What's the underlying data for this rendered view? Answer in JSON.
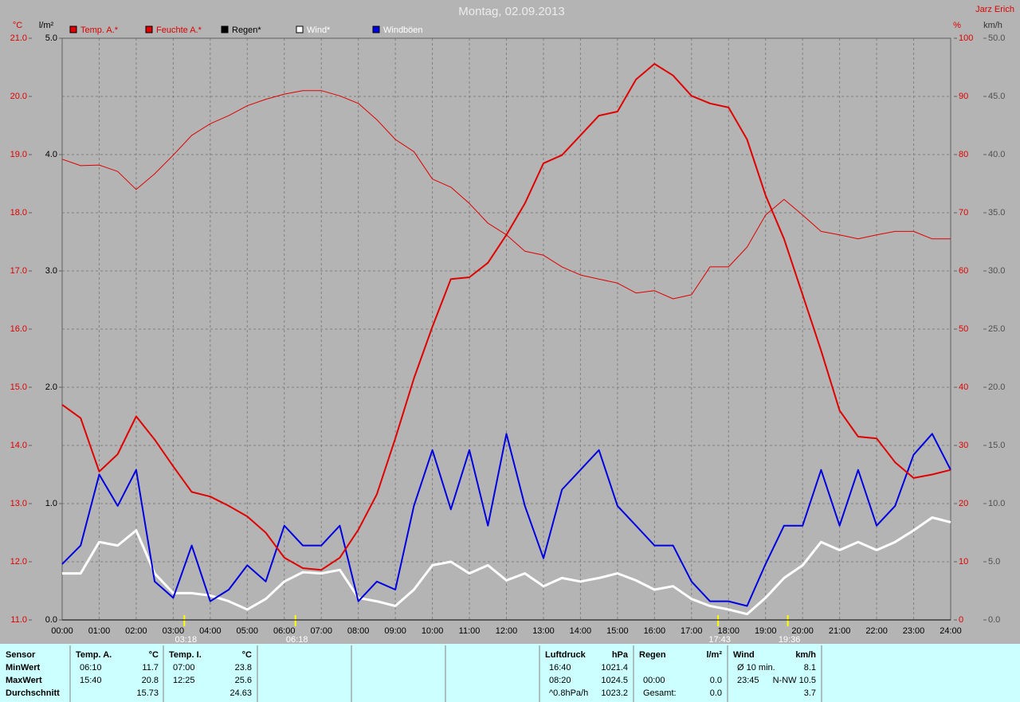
{
  "chart_data": {
    "type": "line",
    "title": "Montag, 02.09.2013",
    "author": "Jarz Erich",
    "axis_labels": {
      "y": "°C",
      "y4": "l/m²",
      "y2": "%",
      "y3": "km/h"
    },
    "x": [
      0,
      0.5,
      1,
      1.5,
      2,
      2.5,
      3,
      3.5,
      4,
      4.5,
      5,
      5.5,
      6,
      6.5,
      7,
      7.5,
      8,
      8.5,
      9,
      9.5,
      10,
      10.5,
      11,
      11.5,
      12,
      12.5,
      13,
      13.5,
      14,
      14.5,
      15,
      15.5,
      16,
      16.5,
      17,
      17.5,
      18,
      18.5,
      19,
      19.5,
      20,
      20.5,
      21,
      21.5,
      22,
      22.5,
      23,
      23.5,
      24
    ],
    "xlim": [
      0,
      24
    ],
    "xticks": [
      {
        "value": 0,
        "label": "00:00"
      },
      {
        "value": 1,
        "label": "01:00"
      },
      {
        "value": 2,
        "label": "02:00"
      },
      {
        "value": 3,
        "label": "03:00"
      },
      {
        "value": 4,
        "label": "04:00"
      },
      {
        "value": 5,
        "label": "05:00"
      },
      {
        "value": 6,
        "label": "06:00"
      },
      {
        "value": 7,
        "label": "07:00"
      },
      {
        "value": 8,
        "label": "08:00"
      },
      {
        "value": 9,
        "label": "09:00"
      },
      {
        "value": 10,
        "label": "10:00"
      },
      {
        "value": 11,
        "label": "11:00"
      },
      {
        "value": 12,
        "label": "12:00"
      },
      {
        "value": 13,
        "label": "13:00"
      },
      {
        "value": 14,
        "label": "14:00"
      },
      {
        "value": 15,
        "label": "15:00"
      },
      {
        "value": 16,
        "label": "16:00"
      },
      {
        "value": 17,
        "label": "17:00"
      },
      {
        "value": 18,
        "label": "18:00"
      },
      {
        "value": 19,
        "label": "19:00"
      },
      {
        "value": 20,
        "label": "20:00"
      },
      {
        "value": 21,
        "label": "21:00"
      },
      {
        "value": 22,
        "label": "22:00"
      },
      {
        "value": 23,
        "label": "23:00"
      },
      {
        "value": 24,
        "label": "24:00"
      }
    ],
    "ylim": [
      11,
      21
    ],
    "yticks": [
      {
        "value": 11,
        "label": "11.0"
      },
      {
        "value": 12,
        "label": "12.0"
      },
      {
        "value": 13,
        "label": "13.0"
      },
      {
        "value": 14,
        "label": "14.0"
      },
      {
        "value": 15,
        "label": "15.0"
      },
      {
        "value": 16,
        "label": "16.0"
      },
      {
        "value": 17,
        "label": "17.0"
      },
      {
        "value": 18,
        "label": "18.0"
      },
      {
        "value": 19,
        "label": "19.0"
      },
      {
        "value": 20,
        "label": "20.0"
      },
      {
        "value": 21,
        "label": "21.0"
      }
    ],
    "y4lim": [
      0,
      5
    ],
    "y4ticks": [
      {
        "value": 0,
        "label": "0.0"
      },
      {
        "value": 1,
        "label": "1.0"
      },
      {
        "value": 2,
        "label": "2.0"
      },
      {
        "value": 3,
        "label": "3.0"
      },
      {
        "value": 4,
        "label": "4.0"
      },
      {
        "value": 5,
        "label": "5.0"
      }
    ],
    "y2lim": [
      0,
      100
    ],
    "y2ticks": [
      0,
      10,
      20,
      30,
      40,
      50,
      60,
      70,
      80,
      90,
      100
    ],
    "y3lim": [
      0,
      50
    ],
    "y3ticks": [
      {
        "value": 0,
        "label": "0.0"
      },
      {
        "value": 5,
        "label": "5.0"
      },
      {
        "value": 10,
        "label": "10.0"
      },
      {
        "value": 15,
        "label": "15.0"
      },
      {
        "value": 20,
        "label": "20.0"
      },
      {
        "value": 25,
        "label": "25.0"
      },
      {
        "value": 30,
        "label": "30.0"
      },
      {
        "value": 35,
        "label": "35.0"
      },
      {
        "value": 40,
        "label": "40.0"
      },
      {
        "value": 45,
        "label": "45.0"
      },
      {
        "value": 50,
        "label": "50.0"
      }
    ],
    "grid": true,
    "series": [
      {
        "name": "Temp. A.*",
        "color": "#e00000",
        "axis": "y",
        "width": 2,
        "values": [
          14.7,
          14.47,
          13.55,
          13.85,
          14.5,
          14.1,
          13.64,
          13.2,
          13.12,
          12.96,
          12.78,
          12.5,
          12.07,
          11.89,
          11.86,
          12.07,
          12.55,
          13.16,
          14.12,
          15.15,
          16.04,
          16.86,
          16.89,
          17.14,
          17.62,
          18.16,
          18.85,
          18.99,
          19.33,
          19.67,
          19.74,
          20.29,
          20.56,
          20.36,
          20.01,
          19.88,
          19.81,
          19.26,
          18.3,
          17.55,
          16.59,
          15.63,
          14.6,
          14.15,
          14.12,
          13.71,
          13.44,
          13.5,
          13.58
        ]
      },
      {
        "name": "Feuchte A.*",
        "color": "#e00000",
        "axis": "y2",
        "width": 1,
        "values": [
          79.2,
          78.1,
          78.2,
          77.1,
          74,
          76.7,
          79.9,
          83.3,
          85.3,
          86.7,
          88.4,
          89.5,
          90.4,
          91,
          91,
          90.1,
          88.8,
          86,
          82.6,
          80.5,
          75.8,
          74.4,
          71.6,
          68.2,
          66.2,
          63.4,
          62.7,
          60.7,
          59.3,
          58.6,
          57.9,
          56.2,
          56.6,
          55.2,
          55.9,
          60.7,
          60.7,
          64.1,
          69.6,
          72.3,
          69.6,
          66.8,
          66.2,
          65.5,
          66.2,
          66.8,
          66.8,
          65.5,
          65.5
        ]
      },
      {
        "name": "Regen*",
        "color": "#000000",
        "axis": "y4",
        "width": 1,
        "values": [
          0,
          0,
          0,
          0,
          0,
          0,
          0,
          0,
          0,
          0,
          0,
          0,
          0,
          0,
          0,
          0,
          0,
          0,
          0,
          0,
          0,
          0,
          0,
          0,
          0,
          0,
          0,
          0,
          0,
          0,
          0,
          0,
          0,
          0,
          0,
          0,
          0,
          0,
          0,
          0,
          0,
          0,
          0,
          0,
          0,
          0,
          0,
          0,
          0
        ]
      },
      {
        "name": "Wind*",
        "color": "#ffffff",
        "axis": "y3",
        "width": 3,
        "values": [
          4.0,
          4.0,
          6.7,
          6.4,
          7.7,
          4.0,
          2.3,
          2.3,
          2.1,
          1.6,
          0.9,
          1.8,
          3.3,
          4.1,
          4.0,
          4.3,
          1.9,
          1.6,
          1.2,
          2.6,
          4.7,
          5.0,
          4.0,
          4.7,
          3.4,
          4.0,
          2.9,
          3.6,
          3.3,
          3.6,
          4.0,
          3.4,
          2.6,
          2.9,
          1.8,
          1.2,
          0.9,
          0.5,
          1.9,
          3.6,
          4.7,
          6.7,
          6.0,
          6.7,
          6.0,
          6.7,
          7.7,
          8.8,
          8.4
        ]
      },
      {
        "name": "Windböen",
        "color": "#0000e0",
        "axis": "y3",
        "width": 2,
        "values": [
          4.8,
          6.4,
          12.5,
          9.8,
          12.9,
          3.3,
          1.9,
          6.4,
          1.6,
          2.6,
          4.7,
          3.3,
          8.1,
          6.4,
          6.4,
          8.1,
          1.6,
          3.3,
          2.6,
          9.8,
          14.6,
          9.5,
          14.6,
          8.1,
          16.0,
          9.8,
          5.3,
          11.2,
          12.9,
          14.6,
          9.8,
          8.1,
          6.4,
          6.4,
          3.3,
          1.6,
          1.6,
          1.2,
          4.8,
          8.1,
          8.1,
          12.9,
          8.1,
          12.9,
          8.1,
          9.8,
          14.2,
          16.0,
          12.9
        ]
      }
    ],
    "annotations": [
      {
        "x": 3.3,
        "label": "03:18"
      },
      {
        "x": 6.3,
        "label": "06:18"
      },
      {
        "x": 17.717,
        "label": "17:43"
      },
      {
        "x": 19.6,
        "label": "19:36"
      }
    ]
  },
  "table": {
    "row_labels": [
      "Sensor",
      "MinWert",
      "MaxWert",
      "Durchschnitt"
    ],
    "blocks": [
      {
        "title": "Temp. A.",
        "unit": "°C",
        "rows": [
          [
            "06:10",
            "11.7"
          ],
          [
            "15:40",
            "20.8"
          ],
          [
            null,
            "15.73"
          ]
        ]
      },
      {
        "title": "Temp. I.",
        "unit": "°C",
        "rows": [
          [
            "07:00",
            "23.8"
          ],
          [
            "12:25",
            "25.6"
          ],
          [
            null,
            "24.63"
          ]
        ]
      },
      {
        "title": "Luftdruck",
        "unit": "hPa",
        "rows": [
          [
            "16:40",
            "1021.4"
          ],
          [
            "08:20",
            "1024.5"
          ],
          [
            "^0.8hPa/h",
            "1023.2"
          ]
        ]
      },
      {
        "title": "Regen",
        "unit": "l/m²",
        "rows": [
          [
            null,
            null
          ],
          [
            "00:00",
            "0.0"
          ],
          [
            "Gesamt:",
            "0.0"
          ]
        ]
      },
      {
        "title": "Wind",
        "unit": "km/h",
        "rows": [
          [
            "Ø 10 min.",
            "8.1"
          ],
          [
            "23:45",
            "N-NW 10.5"
          ],
          [
            null,
            "3.7"
          ]
        ]
      }
    ]
  }
}
